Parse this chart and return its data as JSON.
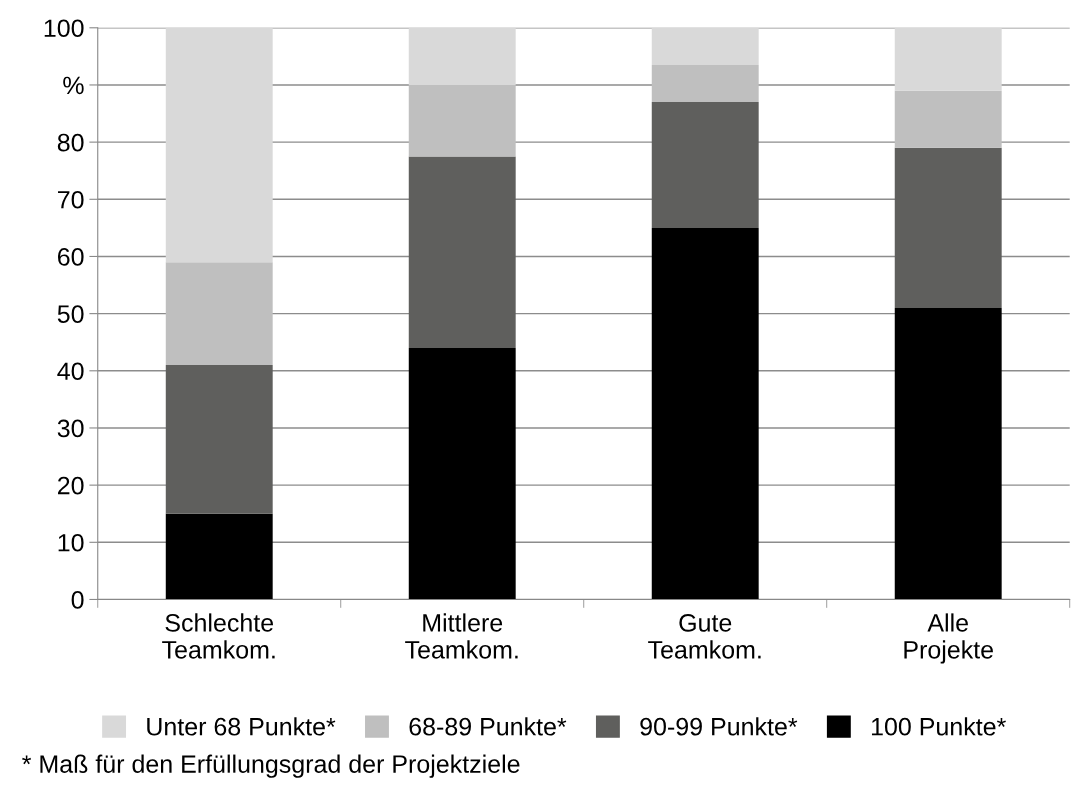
{
  "chart_data": {
    "type": "bar",
    "stacked": true,
    "categories": [
      "Schlechte\nTeamkom.",
      "Mittlere\nTeamkom.",
      "Gute\nTeamkom.",
      "Alle\nProjekte"
    ],
    "series": [
      {
        "name": "100 Punkte*",
        "color": "#000000",
        "values": [
          15,
          44,
          65,
          51
        ]
      },
      {
        "name": "90-99 Punkte*",
        "color": "#5f5f5d",
        "values": [
          26,
          33.5,
          22,
          28
        ]
      },
      {
        "name": "68-89 Punkte*",
        "color": "#bfbfbf",
        "values": [
          18,
          12.5,
          6.5,
          10
        ]
      },
      {
        "name": "Unter 68 Punkte*",
        "color": "#d9d9d9",
        "values": [
          41,
          10,
          6.5,
          11
        ]
      }
    ],
    "ylim": [
      0,
      100
    ],
    "yticks": [
      0,
      10,
      20,
      30,
      40,
      50,
      60,
      70,
      80,
      {
        "value": 90,
        "label": "%"
      },
      100
    ],
    "grid": "y",
    "legend": "bottom",
    "annotations": [
      "* Maß für den Erfüllungsgrad der Projektziele"
    ]
  }
}
